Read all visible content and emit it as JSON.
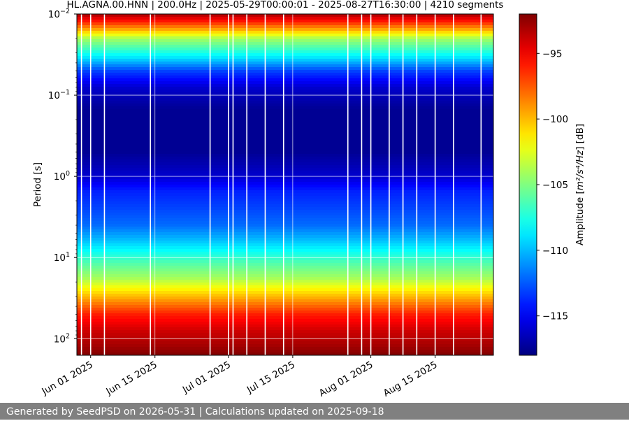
{
  "chart_data": {
    "type": "heatmap",
    "title": "HL.AGNA.00.HNN | 200.0Hz | 2025-05-29T00:00:01 - 2025-08-27T16:30:00 | 4210 segments",
    "ylabel": "Period [s]",
    "y_scale": "log",
    "y_inverted": true,
    "ylim": [
      0.01,
      160
    ],
    "y_ticks": [
      {
        "value": 0.01,
        "base": "10",
        "exp": "−2"
      },
      {
        "value": 0.1,
        "base": "10",
        "exp": "−1"
      },
      {
        "value": 1,
        "base": "10",
        "exp": "0"
      },
      {
        "value": 10,
        "base": "10",
        "exp": "1"
      },
      {
        "value": 100,
        "base": "10",
        "exp": "2"
      }
    ],
    "x_type": "date",
    "xlim": [
      "2025-05-29",
      "2025-08-27T16:30:00"
    ],
    "x_ticks": [
      {
        "date": "2025-06-01",
        "label": "Jun 01 2025"
      },
      {
        "date": "2025-06-15",
        "label": "Jun 15 2025"
      },
      {
        "date": "2025-07-01",
        "label": "Jul 01 2025"
      },
      {
        "date": "2025-07-15",
        "label": "Jul 15 2025"
      },
      {
        "date": "2025-08-01",
        "label": "Aug 01 2025"
      },
      {
        "date": "2025-08-15",
        "label": "Aug 15 2025"
      }
    ],
    "grid": true,
    "colormap": "jet",
    "colorbar": {
      "label_prefix": "Amplitude [",
      "label_math": "m²/s⁴/Hz",
      "label_suffix": "] [dB]",
      "range": [
        -118,
        -92
      ],
      "ticks": [
        {
          "value": -95,
          "label": "−95"
        },
        {
          "value": -100,
          "label": "−100"
        },
        {
          "value": -105,
          "label": "−105"
        },
        {
          "value": -110,
          "label": "−110"
        },
        {
          "value": -115,
          "label": "−115"
        }
      ]
    },
    "amplitude_profile": [
      {
        "period": 0.01,
        "db": -93
      },
      {
        "period": 0.0125,
        "db": -96
      },
      {
        "period": 0.016,
        "db": -100
      },
      {
        "period": 0.02,
        "db": -104
      },
      {
        "period": 0.025,
        "db": -106
      },
      {
        "period": 0.035,
        "db": -109
      },
      {
        "period": 0.05,
        "db": -113
      },
      {
        "period": 0.08,
        "db": -116
      },
      {
        "period": 0.15,
        "db": -117.5
      },
      {
        "period": 0.5,
        "db": -117.5
      },
      {
        "period": 1.0,
        "db": -116
      },
      {
        "period": 1.5,
        "db": -114
      },
      {
        "period": 2.5,
        "db": -113
      },
      {
        "period": 4.0,
        "db": -112
      },
      {
        "period": 6.0,
        "db": -110
      },
      {
        "period": 10,
        "db": -107
      },
      {
        "period": 18,
        "db": -104
      },
      {
        "period": 30,
        "db": -100
      },
      {
        "period": 50,
        "db": -96
      },
      {
        "period": 80,
        "db": -94
      },
      {
        "period": 120,
        "db": -93
      },
      {
        "period": 160,
        "db": -92
      }
    ],
    "data_gaps": [
      "2025-05-30",
      "2025-06-01",
      "2025-06-04",
      "2025-06-14",
      "2025-06-27",
      "2025-07-01",
      "2025-07-02",
      "2025-07-05",
      "2025-07-09",
      "2025-07-13",
      "2025-07-27",
      "2025-07-30",
      "2025-08-01",
      "2025-08-05",
      "2025-08-08",
      "2025-08-11",
      "2025-08-15",
      "2025-08-19",
      "2025-08-25"
    ]
  },
  "footer": {
    "text": "Generated by SeedPSD on 2026-05-31 | Calculations updated on 2025-09-18"
  }
}
